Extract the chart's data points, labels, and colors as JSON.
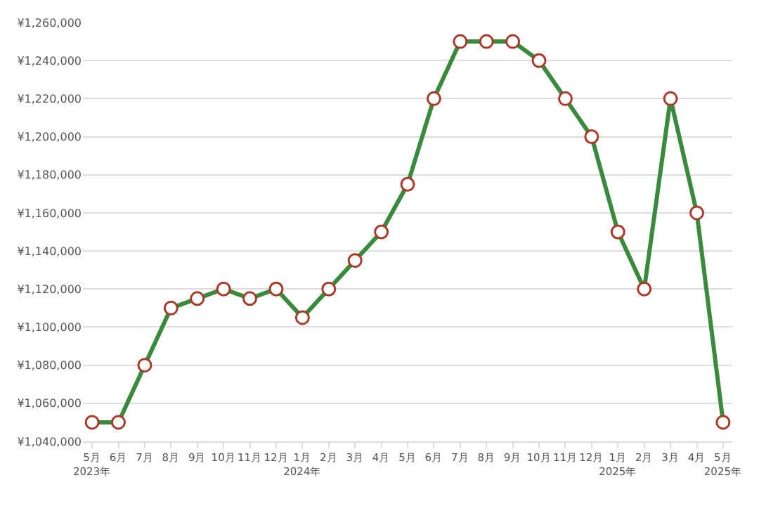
{
  "chart_data": {
    "type": "line",
    "categories": [
      "5月\n2023年",
      "6月",
      "7月",
      "8月",
      "9月",
      "10月",
      "11月",
      "12月",
      "1月\n2024年",
      "2月",
      "3月",
      "4月",
      "5月",
      "6月",
      "7月",
      "8月",
      "9月",
      "10月",
      "11月",
      "12月",
      "1月\n2025年",
      "2月",
      "3月",
      "4月",
      "5月\n2025年"
    ],
    "series": [
      {
        "color": "#3a8a3e",
        "values": [
          1050000,
          1050000,
          1080000,
          1110000,
          1115000,
          1120000,
          1115000,
          1120000,
          1105000,
          1120000,
          1135000,
          1150000,
          1175000,
          1220000,
          1250000,
          1250000,
          1250000,
          1240000,
          1220000,
          1200000,
          1150000,
          1120000,
          1220000,
          1160000,
          1050000
        ]
      }
    ],
    "ylim": [
      1040000,
      1260000
    ],
    "yticks": [
      {
        "value": 1040000,
        "label": "¥1,040,000"
      },
      {
        "value": 1060000,
        "label": "¥1,060,000"
      },
      {
        "value": 1080000,
        "label": "¥1,080,000"
      },
      {
        "value": 1100000,
        "label": "¥1,100,000"
      },
      {
        "value": 1120000,
        "label": "¥1,120,000"
      },
      {
        "value": 1140000,
        "label": "¥1,140,000"
      },
      {
        "value": 1160000,
        "label": "¥1,160,000"
      },
      {
        "value": 1180000,
        "label": "¥1,180,000"
      },
      {
        "value": 1200000,
        "label": "¥1,200,000"
      },
      {
        "value": 1220000,
        "label": "¥1,220,000"
      },
      {
        "value": 1240000,
        "label": "¥1,240,000"
      },
      {
        "value": 1260000,
        "label": "¥1,260,000"
      }
    ],
    "grid": "y",
    "legend": false,
    "marker": "circle",
    "line_style": "solid"
  }
}
